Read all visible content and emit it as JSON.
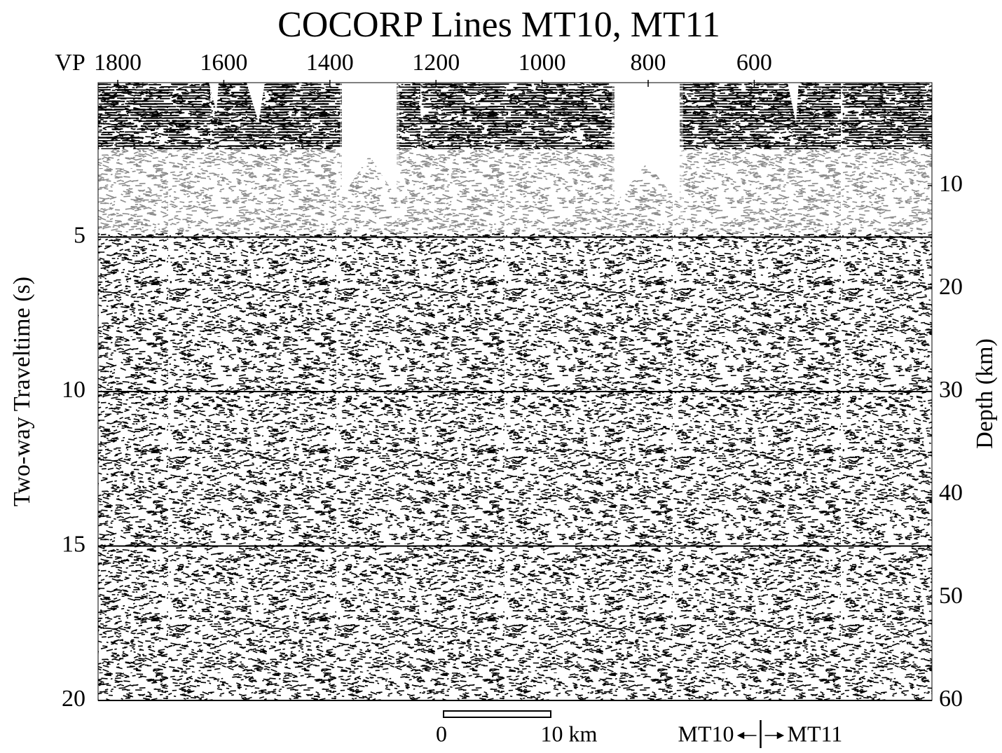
{
  "chart_data": {
    "type": "seismic",
    "title": "COCORP   Lines   MT10, MT11",
    "x_label": "VP",
    "xlim": [
      1837,
      265
    ],
    "xticks": [
      1800,
      1600,
      1400,
      1200,
      1000,
      800,
      600
    ],
    "y_label": "Two-way Traveltime (s)",
    "ylim": [
      0,
      20
    ],
    "yticks": [
      5,
      10,
      15,
      20
    ],
    "y2_label": "Depth (km)",
    "y2lim": [
      0,
      60
    ],
    "y2ticks": [
      10,
      20,
      30,
      40,
      50,
      60
    ],
    "grid": true,
    "scale_bar": {
      "start_label": "0",
      "end_label": "10 km"
    },
    "line_boundary": {
      "vp": 588,
      "left_label": "MT10",
      "right_label": "MT11"
    }
  }
}
